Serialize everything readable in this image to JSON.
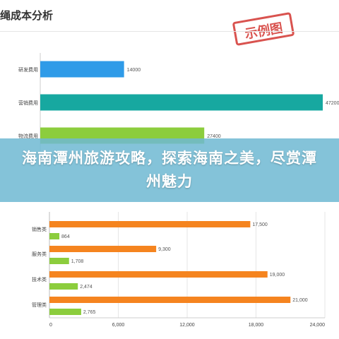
{
  "header": {
    "title": "绳成本分析"
  },
  "stamp": {
    "text": "示例图"
  },
  "banner": {
    "text": "海南潭州旅游攻略，探索海南之美，尽赏潭州魅力"
  },
  "chart_data": [
    {
      "type": "bar",
      "orientation": "horizontal",
      "categories": [
        "研发费用",
        "营销费用",
        "物流费用"
      ],
      "values": [
        14000,
        47200,
        27400
      ],
      "value_labels": [
        "14000",
        "47200",
        "27400"
      ],
      "colors": [
        "#2f9be8",
        "#17a8a0",
        "#8ccd3d"
      ],
      "xlim": [
        0,
        48000
      ]
    },
    {
      "type": "bar",
      "orientation": "horizontal",
      "categories": [
        "销售类",
        "服务类",
        "技术类",
        "管理类"
      ],
      "series": [
        {
          "values": [
            17500,
            9300,
            19000,
            21000
          ],
          "value_labels": [
            "17,500",
            "9,300",
            "19,000",
            "21,000"
          ],
          "color": "#f5841f"
        },
        {
          "values": [
            864,
            1708,
            2474,
            2765
          ],
          "value_labels": [
            "864",
            "1,708",
            "2,474",
            "2,765"
          ],
          "color": "#8ccd3d"
        }
      ],
      "xlim": [
        0,
        24000
      ],
      "xticks": [
        "0",
        "6,000",
        "12,000",
        "18,000",
        "24,000"
      ]
    }
  ]
}
